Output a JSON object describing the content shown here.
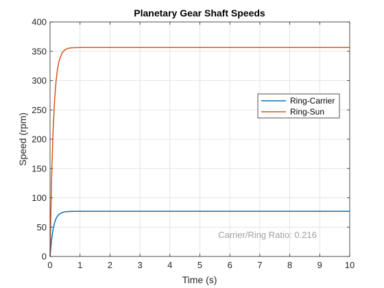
{
  "chart_data": {
    "type": "line",
    "title": "Planetary Gear Shaft Speeds",
    "xlabel": "Time (s)",
    "ylabel": "Speed (rpm)",
    "xlim": [
      0,
      10
    ],
    "ylim": [
      0,
      400
    ],
    "xticks": [
      "0",
      "1",
      "2",
      "3",
      "4",
      "5",
      "6",
      "7",
      "8",
      "9",
      "10"
    ],
    "yticks": [
      "0",
      "50",
      "100",
      "150",
      "200",
      "250",
      "300",
      "350",
      "400"
    ],
    "grid": true,
    "legend_position": "right",
    "annotation": "Carrier/Ring Ratio: 0.216",
    "series": [
      {
        "name": "Ring-Carrier",
        "color": "#0072BD",
        "x": [
          0,
          0.05,
          0.1,
          0.15,
          0.2,
          0.25,
          0.3,
          0.4,
          0.5,
          0.6,
          0.7,
          0.8,
          1.0,
          1.5,
          2,
          3,
          4,
          5,
          6,
          7,
          8,
          9,
          10
        ],
        "y": [
          0,
          28.2,
          46.0,
          57.4,
          64.5,
          69.1,
          71.9,
          74.9,
          76.1,
          76.6,
          76.8,
          76.9,
          77.0,
          77.0,
          77.0,
          77.0,
          77.0,
          77.0,
          77.0,
          77.0,
          77.0,
          77.0,
          77.0
        ]
      },
      {
        "name": "Ring-Sun",
        "color": "#D95319",
        "x": [
          0,
          0.05,
          0.1,
          0.15,
          0.2,
          0.25,
          0.3,
          0.4,
          0.5,
          0.6,
          0.7,
          0.8,
          1.0,
          1.5,
          2,
          3,
          4,
          5,
          6,
          7,
          8,
          9,
          10
        ],
        "y": [
          0,
          130.5,
          213.2,
          265.7,
          299.0,
          320.1,
          333.4,
          347.2,
          352.7,
          355.0,
          355.8,
          356.2,
          356.4,
          356.5,
          356.5,
          356.5,
          356.5,
          356.5,
          356.5,
          356.5,
          356.5,
          356.5,
          356.5
        ]
      }
    ]
  }
}
